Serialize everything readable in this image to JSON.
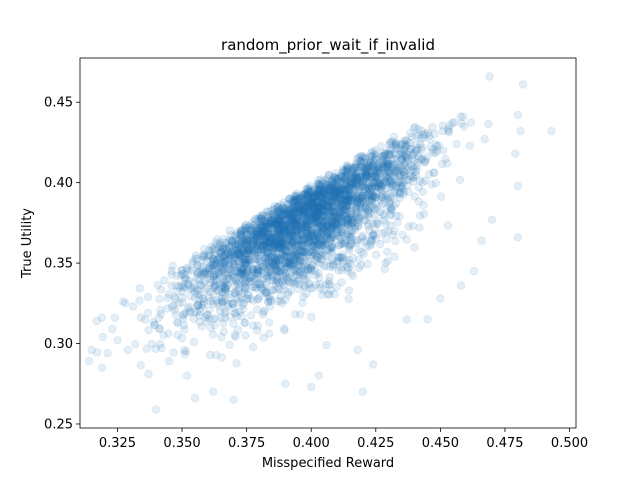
{
  "chart_data": {
    "type": "scatter",
    "title": "random_prior_wait_if_invalid",
    "xlabel": "Misspecified Reward",
    "ylabel": "True Utility",
    "xlim": [
      0.3105,
      0.5025
    ],
    "ylim": [
      0.2475,
      0.4775
    ],
    "xticks": [
      0.325,
      0.35,
      0.375,
      0.4,
      0.425,
      0.45,
      0.475,
      0.5
    ],
    "xtick_labels": [
      "0.325",
      "0.350",
      "0.375",
      "0.400",
      "0.425",
      "0.450",
      "0.475",
      "0.500"
    ],
    "yticks": [
      0.25,
      0.3,
      0.35,
      0.4,
      0.45
    ],
    "ytick_labels": [
      "0.25",
      "0.30",
      "0.35",
      "0.40",
      "0.45"
    ],
    "grid": false,
    "legend": "none",
    "marker_color": "#1f77b4",
    "marker_alpha": 0.12,
    "point_count_approx": 10000,
    "outlier_points": [
      {
        "x": 0.469,
        "y": 0.466
      },
      {
        "x": 0.482,
        "y": 0.461
      },
      {
        "x": 0.493,
        "y": 0.432
      },
      {
        "x": 0.481,
        "y": 0.432
      },
      {
        "x": 0.48,
        "y": 0.442
      },
      {
        "x": 0.479,
        "y": 0.418
      },
      {
        "x": 0.48,
        "y": 0.398
      },
      {
        "x": 0.48,
        "y": 0.366
      },
      {
        "x": 0.47,
        "y": 0.377
      },
      {
        "x": 0.466,
        "y": 0.364
      },
      {
        "x": 0.463,
        "y": 0.345
      },
      {
        "x": 0.458,
        "y": 0.336
      },
      {
        "x": 0.45,
        "y": 0.328
      },
      {
        "x": 0.445,
        "y": 0.315
      },
      {
        "x": 0.437,
        "y": 0.315
      },
      {
        "x": 0.424,
        "y": 0.287
      },
      {
        "x": 0.418,
        "y": 0.296
      },
      {
        "x": 0.42,
        "y": 0.27
      },
      {
        "x": 0.406,
        "y": 0.299
      },
      {
        "x": 0.403,
        "y": 0.28
      },
      {
        "x": 0.4,
        "y": 0.273
      },
      {
        "x": 0.39,
        "y": 0.275
      },
      {
        "x": 0.37,
        "y": 0.265
      },
      {
        "x": 0.355,
        "y": 0.266
      },
      {
        "x": 0.362,
        "y": 0.27
      },
      {
        "x": 0.34,
        "y": 0.259
      },
      {
        "x": 0.345,
        "y": 0.289
      },
      {
        "x": 0.337,
        "y": 0.281
      },
      {
        "x": 0.352,
        "y": 0.28
      },
      {
        "x": 0.329,
        "y": 0.296
      },
      {
        "x": 0.325,
        "y": 0.302
      },
      {
        "x": 0.319,
        "y": 0.285
      },
      {
        "x": 0.314,
        "y": 0.289
      },
      {
        "x": 0.315,
        "y": 0.296
      },
      {
        "x": 0.317,
        "y": 0.314
      },
      {
        "x": 0.319,
        "y": 0.316
      },
      {
        "x": 0.323,
        "y": 0.309
      },
      {
        "x": 0.324,
        "y": 0.316
      },
      {
        "x": 0.328,
        "y": 0.325
      },
      {
        "x": 0.331,
        "y": 0.323
      }
    ]
  }
}
